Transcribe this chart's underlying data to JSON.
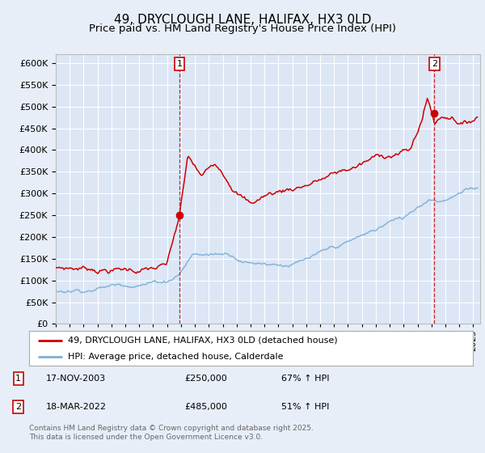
{
  "title": "49, DRYCLOUGH LANE, HALIFAX, HX3 0LD",
  "subtitle": "Price paid vs. HM Land Registry's House Price Index (HPI)",
  "ylim": [
    0,
    620000
  ],
  "yticks": [
    0,
    50000,
    100000,
    150000,
    200000,
    250000,
    300000,
    350000,
    400000,
    450000,
    500000,
    550000,
    600000
  ],
  "xlim_start": 1995.0,
  "xlim_end": 2025.5,
  "bg_color": "#e8eef8",
  "plot_bg": "#dce6f5",
  "grid_color": "#ffffff",
  "red_color": "#cc0000",
  "blue_color": "#7bafd4",
  "legend_label_red": "49, DRYCLOUGH LANE, HALIFAX, HX3 0LD (detached house)",
  "legend_label_blue": "HPI: Average price, detached house, Calderdale",
  "sale1_date": 2003.88,
  "sale1_price": 250000,
  "sale2_date": 2022.21,
  "sale2_price": 485000,
  "footer": "Contains HM Land Registry data © Crown copyright and database right 2025.\nThis data is licensed under the Open Government Licence v3.0.",
  "title_fontsize": 11,
  "subtitle_fontsize": 9.5
}
